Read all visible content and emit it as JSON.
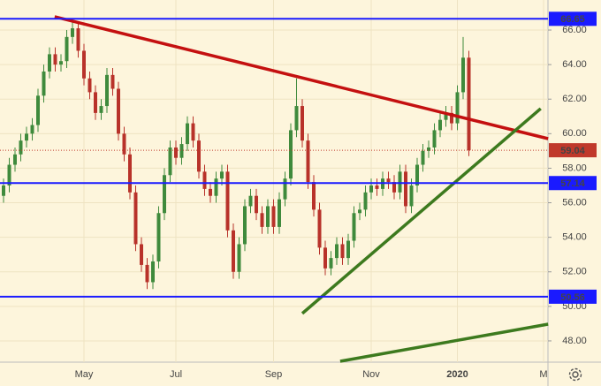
{
  "chart_data": {
    "type": "candlestick",
    "categories": [
      null,
      null,
      null,
      null,
      null,
      null,
      null,
      null,
      null,
      null,
      null,
      null,
      null,
      null,
      "May",
      null,
      null,
      null,
      null,
      null,
      null,
      null,
      null,
      null,
      null,
      null,
      null,
      null,
      null,
      null,
      "Jul",
      null,
      null,
      null,
      null,
      null,
      null,
      null,
      null,
      null,
      null,
      null,
      null,
      null,
      null,
      null,
      null,
      "Sep",
      null,
      null,
      null,
      null,
      null,
      null,
      null,
      null,
      null,
      null,
      null,
      null,
      null,
      null,
      null,
      null,
      "Nov",
      null,
      null,
      null,
      null,
      null,
      null,
      null,
      null,
      null,
      null,
      null,
      null,
      null,
      null,
      "2020",
      null,
      null,
      null,
      null,
      null,
      null,
      null,
      null,
      null,
      null,
      null,
      null,
      null,
      null,
      "M"
    ],
    "open": [
      56.4,
      57.0,
      58.2,
      58.8,
      59.6,
      60.0,
      60.5,
      62.2,
      63.6,
      64.6,
      64.0,
      64.2,
      65.6,
      66.1,
      64.8,
      63.2,
      62.4,
      61.2,
      61.6,
      63.4,
      62.6,
      60.0,
      58.8,
      56.6,
      53.6,
      52.4,
      51.4,
      52.6,
      55.4,
      57.6,
      59.2,
      58.6,
      59.4,
      60.6,
      59.6,
      57.8,
      56.8,
      56.4,
      57.4,
      57.8,
      54.4,
      52.0,
      53.6,
      55.8,
      56.4,
      55.4,
      54.6,
      55.8,
      54.6,
      56.2,
      57.4,
      60.2,
      61.6,
      59.6,
      57.2,
      55.6,
      53.4,
      52.2,
      52.8,
      53.6,
      52.8,
      53.8,
      55.4,
      55.6,
      56.6,
      57.0,
      56.8,
      57.4,
      57.2,
      56.6,
      57.8,
      55.8,
      57.0,
      58.2,
      59.0,
      59.2,
      60.2,
      60.8,
      61.2,
      60.6,
      62.4,
      64.4,
      null,
      null,
      null,
      null,
      null,
      null,
      null,
      null,
      null,
      null,
      null,
      null,
      null
    ],
    "high": [
      57.4,
      58.6,
      59.2,
      60.0,
      60.4,
      60.9,
      62.6,
      64.0,
      65.0,
      65.0,
      64.6,
      66.0,
      66.6,
      66.5,
      65.2,
      63.6,
      62.8,
      62.0,
      63.8,
      63.8,
      63.0,
      60.4,
      59.2,
      57.0,
      54.0,
      52.8,
      53.0,
      55.8,
      58.0,
      59.6,
      59.6,
      59.8,
      61.0,
      61.0,
      60.0,
      58.2,
      57.2,
      57.8,
      58.2,
      58.2,
      54.8,
      54.0,
      56.2,
      56.8,
      56.8,
      55.8,
      56.2,
      56.2,
      56.6,
      57.8,
      60.6,
      63.2,
      62.0,
      60.0,
      57.6,
      56.0,
      53.8,
      53.2,
      54.0,
      54.0,
      54.2,
      55.8,
      56.0,
      57.0,
      57.4,
      57.4,
      57.8,
      57.8,
      57.6,
      58.2,
      58.2,
      57.4,
      58.6,
      59.4,
      59.6,
      60.6,
      61.2,
      61.6,
      61.6,
      62.8,
      65.6,
      64.8,
      null,
      null,
      null,
      null,
      null,
      null,
      null,
      null,
      null,
      null,
      null,
      null,
      null
    ],
    "low": [
      56.0,
      56.6,
      57.8,
      58.4,
      59.2,
      59.6,
      60.1,
      61.8,
      63.2,
      63.6,
      63.6,
      63.8,
      65.2,
      64.4,
      62.8,
      62.0,
      60.8,
      60.8,
      61.2,
      62.2,
      59.6,
      58.4,
      56.2,
      53.2,
      52.0,
      51.0,
      51.0,
      52.2,
      55.0,
      57.2,
      58.2,
      58.2,
      59.0,
      59.2,
      57.4,
      56.4,
      56.0,
      56.0,
      57.0,
      54.0,
      51.6,
      51.6,
      53.2,
      55.4,
      55.0,
      54.2,
      54.2,
      54.2,
      54.2,
      55.8,
      57.0,
      59.8,
      59.2,
      56.8,
      55.2,
      53.0,
      51.8,
      51.8,
      52.4,
      52.4,
      52.4,
      53.4,
      55.0,
      55.2,
      56.2,
      56.4,
      56.4,
      56.8,
      56.2,
      56.2,
      55.4,
      55.4,
      56.6,
      57.8,
      58.6,
      58.8,
      59.8,
      60.4,
      60.2,
      60.2,
      62.0,
      58.7,
      null,
      null,
      null,
      null,
      null,
      null,
      null,
      null,
      null,
      null,
      null,
      null,
      null
    ],
    "close": [
      57.0,
      58.2,
      58.8,
      59.6,
      60.0,
      60.5,
      62.2,
      63.6,
      64.6,
      64.0,
      64.2,
      65.6,
      66.1,
      64.8,
      63.2,
      62.4,
      61.2,
      61.6,
      63.4,
      62.6,
      60.0,
      58.8,
      56.6,
      53.6,
      52.4,
      51.4,
      52.6,
      55.4,
      57.6,
      59.2,
      58.6,
      59.4,
      60.6,
      59.6,
      57.8,
      56.8,
      56.4,
      57.4,
      57.8,
      54.4,
      52.0,
      53.6,
      55.8,
      56.4,
      55.4,
      54.6,
      55.8,
      54.6,
      56.2,
      57.4,
      60.2,
      61.6,
      59.6,
      57.2,
      55.6,
      53.4,
      52.2,
      52.8,
      53.6,
      52.8,
      53.8,
      55.4,
      55.6,
      56.6,
      57.0,
      56.8,
      57.4,
      57.2,
      56.6,
      57.8,
      55.8,
      57.0,
      58.2,
      59.0,
      59.2,
      60.2,
      60.8,
      61.2,
      60.6,
      62.4,
      64.4,
      59.04,
      null,
      null,
      null,
      null,
      null,
      null,
      null,
      null,
      null,
      null,
      null,
      null,
      null
    ],
    "up_color": "#3f8a3c",
    "down_color": "#b8322a",
    "ylim": [
      46.77,
      67.74
    ],
    "yticks": [
      {
        "value": 48,
        "label": "48.00"
      },
      {
        "value": 50,
        "label": "50.00"
      },
      {
        "value": 52,
        "label": "52.00"
      },
      {
        "value": 54,
        "label": "54.00"
      },
      {
        "value": 56,
        "label": "56.00"
      },
      {
        "value": 58,
        "label": "58.00"
      },
      {
        "value": 60,
        "label": "60.00"
      },
      {
        "value": 62,
        "label": "62.00"
      },
      {
        "value": 64,
        "label": "64.00"
      },
      {
        "value": 66,
        "label": "66.00"
      }
    ],
    "grid": true,
    "levels": [
      {
        "value": 66.65,
        "color": "#1a1aff"
      },
      {
        "value": 57.14,
        "color": "#1a1aff"
      },
      {
        "value": 50.56,
        "color": "#1a1aff"
      }
    ],
    "last_price": {
      "value": 59.04,
      "color": "#c0392b"
    },
    "trendlines": [
      {
        "x": [
          8.9,
          94.8
        ],
        "y": [
          66.77,
          59.71
        ],
        "color": "#c41010"
      },
      {
        "x": [
          52,
          93.5
        ],
        "y": [
          49.59,
          61.45
        ],
        "color": "#3d7a1e"
      },
      {
        "x": [
          58.6,
          94.8
        ],
        "y": [
          46.82,
          48.97
        ],
        "color": "#3d7a1e"
      }
    ]
  }
}
